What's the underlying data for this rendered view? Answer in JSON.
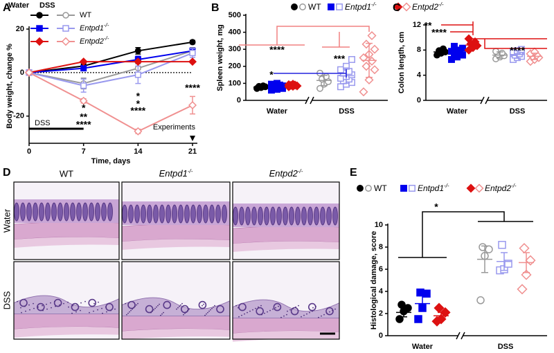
{
  "chart_data": [
    {
      "type": "line",
      "panel_label": "A",
      "ylabel": "Body weight, change %",
      "xlabel": "Time, days",
      "groups": [
        "Water",
        "DSS"
      ],
      "x": [
        0,
        7,
        14,
        21
      ],
      "xlim": [
        0,
        21
      ],
      "xticks": [
        0,
        7,
        14,
        21
      ],
      "ylim": [
        -32.5,
        20
      ],
      "yticks": [
        -20,
        0,
        20
      ],
      "zero_line": true,
      "series": [
        {
          "name": "WT",
          "colors": [
            "#000000",
            "#999999"
          ],
          "marker": "circle",
          "values": [
            [
              0,
              3,
              10,
              14
            ],
            [
              0,
              -5,
              2,
              10
            ]
          ],
          "errors": [
            [
              0,
              1,
              1.5,
              0.8
            ],
            [
              0,
              2.5,
              2,
              1.5
            ]
          ]
        },
        {
          "name": "Entpd1-/-",
          "colors": [
            "#0000ee",
            "#9999ee"
          ],
          "marker": "square",
          "values": [
            [
              0,
              2,
              6,
              10
            ],
            [
              0,
              -6,
              -1,
              9
            ]
          ],
          "errors": [
            [
              0,
              1,
              1.5,
              1
            ],
            [
              0,
              3,
              4,
              2
            ]
          ]
        },
        {
          "name": "Entpd2-/-",
          "colors": [
            "#dd1111",
            "#f09090"
          ],
          "marker": "diamond",
          "values": [
            [
              0,
              5,
              5,
              5
            ],
            [
              0,
              -13,
              -27,
              -15
            ]
          ],
          "errors": [
            [
              0,
              0.5,
              0.5,
              0.5
            ],
            [
              0,
              1,
              1,
              4
            ]
          ]
        }
      ],
      "annotations": [
        {
          "text": "*",
          "color": "#000000",
          "x": 7
        },
        {
          "text": "**",
          "color": "#0000ee",
          "x": 7
        },
        {
          "text": "****",
          "color": "#dd1111",
          "x": 7
        },
        {
          "text": "*",
          "color": "#000000",
          "x": 14
        },
        {
          "text": "*",
          "color": "#0000ee",
          "x": 14
        },
        {
          "text": "****",
          "color": "#dd1111",
          "x": 14
        },
        {
          "text": "****",
          "color": "#dd1111",
          "x": 21
        }
      ],
      "treatment": {
        "label": "DSS",
        "span": [
          0,
          7
        ]
      },
      "endpoint": {
        "label": "Experiments",
        "x": 21
      }
    },
    {
      "type": "dot",
      "panel_label": "B",
      "ylabel": "Spleen weight, mg",
      "categories": [
        "Water",
        "DSS"
      ],
      "filled": [
        true,
        false
      ],
      "ylim": [
        0,
        500
      ],
      "yticks": [
        0,
        100,
        200,
        300,
        400,
        500
      ],
      "axis_break": true,
      "series": [
        {
          "name": "WT",
          "colors": [
            "#000000",
            "#999999"
          ],
          "marker": "circle",
          "values": [
            [
              70,
              75,
              80,
              82,
              85
            ],
            [
              70,
              95,
              110,
              125,
              140,
              160
            ]
          ],
          "means": [
            78,
            117
          ],
          "errors": [
            5,
            30
          ]
        },
        {
          "name": "Entpd1-/-",
          "colors": [
            "#0000ee",
            "#9999ee"
          ],
          "marker": "square",
          "values": [
            [
              60,
              65,
              70,
              75,
              78,
              80,
              82,
              85,
              88,
              90,
              95,
              100
            ],
            [
              80,
              95,
              105,
              115,
              125,
              130,
              140,
              150,
              160,
              170,
              180,
              200,
              240
            ]
          ],
          "means": [
            80,
            145
          ],
          "errors": [
            12,
            45
          ]
        },
        {
          "name": "Entpd2-/-",
          "colors": [
            "#dd1111",
            "#f09090"
          ],
          "marker": "diamond",
          "values": [
            [
              80,
              83,
              85,
              88,
              90,
              92,
              95
            ],
            [
              50,
              120,
              180,
              200,
              230,
              250,
              270,
              300,
              330,
              380
            ]
          ],
          "means": [
            88,
            235
          ],
          "errors": [
            5,
            100
          ]
        }
      ],
      "annotations": [
        {
          "text": "****",
          "color": "#f08080"
        },
        {
          "text": "***",
          "color": "#f08080"
        },
        {
          "text": "*",
          "color": "#2222dd"
        }
      ]
    },
    {
      "type": "dot",
      "panel_label": "C",
      "ylabel": "Colon length, cm",
      "categories": [
        "Water",
        "DSS"
      ],
      "filled": [
        true,
        false
      ],
      "ylim": [
        0,
        12
      ],
      "yticks": [
        0,
        4,
        8,
        12
      ],
      "axis_break": true,
      "series": [
        {
          "colors": [
            "#000000",
            "#999999"
          ],
          "marker": "circle",
          "values": [
            [
              7.2,
              7.5,
              7.7,
              7.9,
              8.2
            ],
            [
              6.6,
              6.9,
              7.1,
              7.3,
              7.5,
              7.8
            ]
          ],
          "means": [
            7.7,
            7.2
          ],
          "errors": [
            0.4,
            0.5
          ]
        },
        {
          "colors": [
            "#0000ee",
            "#9999ee"
          ],
          "marker": "square",
          "values": [
            [
              6.5,
              6.9,
              7.2,
              7.4,
              7.6,
              7.8,
              8.0,
              8.3,
              8.6
            ],
            [
              6.5,
              6.8,
              7.0,
              7.2,
              7.4,
              7.6,
              7.9,
              8.1
            ]
          ],
          "means": [
            7.6,
            7.3
          ],
          "errors": [
            0.6,
            0.6
          ]
        },
        {
          "colors": [
            "#dd1111",
            "#f09090"
          ],
          "marker": "diamond",
          "values": [
            [
              8.0,
              8.4,
              8.7,
              9.0,
              9.3,
              9.8
            ],
            [
              6.2,
              6.5,
              6.8,
              7.0,
              7.2,
              7.4,
              7.7
            ]
          ],
          "means": [
            8.8,
            7.0
          ],
          "errors": [
            0.6,
            0.5
          ]
        }
      ],
      "annotations": [
        {
          "text": "**",
          "color": "#dd1111"
        },
        {
          "text": "****",
          "color": "#dd1111"
        },
        {
          "text": "****",
          "color": "#dd1111"
        }
      ]
    },
    {
      "type": "dot",
      "panel_label": "E",
      "ylabel": "Histological damage, score",
      "categories": [
        "Water",
        "DSS"
      ],
      "filled": [
        true,
        false
      ],
      "ylim": [
        0,
        10
      ],
      "yticks": [
        0,
        2,
        4,
        6,
        8,
        10
      ],
      "axis_break": true,
      "series": [
        {
          "name": "WT",
          "colors": [
            "#000000",
            "#999999"
          ],
          "marker": "circle",
          "values": [
            [
              1.5,
              2.2,
              2.5,
              2.8
            ],
            [
              3.2,
              7.2,
              7.8,
              8.0
            ]
          ],
          "means": [
            2.1,
            6.9
          ],
          "errors": [
            0.4,
            1.2
          ]
        },
        {
          "name": "Entpd1-/-",
          "colors": [
            "#0000ee",
            "#9999ee"
          ],
          "marker": "square",
          "values": [
            [
              1.5,
              2.5,
              3.8,
              3.9
            ],
            [
              5.9,
              6.0,
              6.5,
              8.2
            ]
          ],
          "means": [
            2.9,
            6.7
          ],
          "errors": [
            0.7,
            0.8
          ]
        },
        {
          "name": "Entpd2-/-",
          "colors": [
            "#dd1111",
            "#f09090"
          ],
          "marker": "diamond",
          "values": [
            [
              1.3,
              1.5,
              2.1,
              2.5
            ],
            [
              4.2,
              5.5,
              6.8,
              7.9
            ]
          ],
          "means": [
            1.8,
            6.6
          ],
          "errors": [
            0.3,
            0.9
          ]
        }
      ],
      "annotations": [
        {
          "text": "*",
          "color": "#000000"
        }
      ]
    }
  ],
  "image_panel": {
    "panel_label": "D",
    "columns": [
      "WT",
      "Entpd1-/-",
      "Entpd2-/-"
    ],
    "rows": [
      "Water",
      "DSS"
    ]
  }
}
